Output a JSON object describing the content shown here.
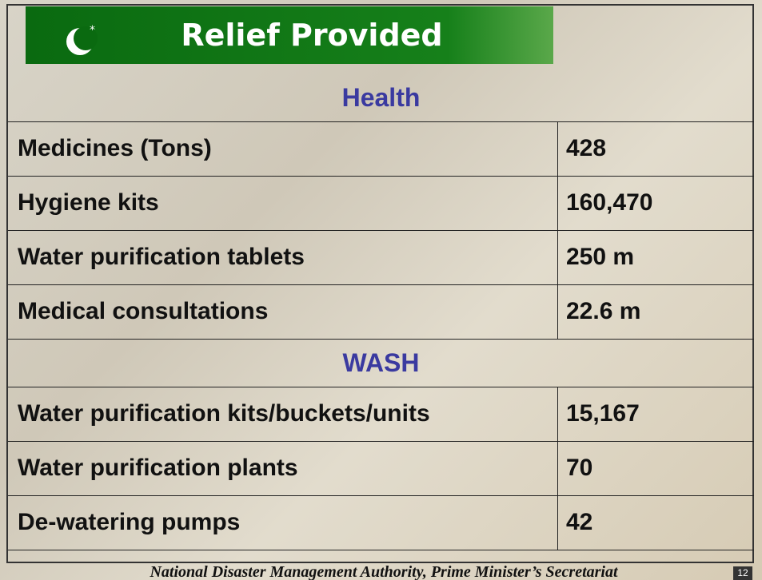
{
  "header": {
    "title": "Relief Provided"
  },
  "sections": [
    {
      "heading": "Health",
      "rows": [
        [
          "Medicines (Tons)",
          "428"
        ],
        [
          "Hygiene kits",
          "160,470"
        ],
        [
          "Water purification tablets",
          "250 m"
        ],
        [
          "Medical consultations",
          "22.6 m"
        ]
      ]
    },
    {
      "heading": "WASH",
      "rows": [
        [
          "Water purification kits/buckets/units",
          "15,167"
        ],
        [
          "Water purification plants",
          "70"
        ],
        [
          "De-watering pumps",
          "42"
        ]
      ]
    }
  ],
  "footer": {
    "text": "National Disaster Management Authority, Prime Minister’s Secretariat",
    "page": "12"
  }
}
